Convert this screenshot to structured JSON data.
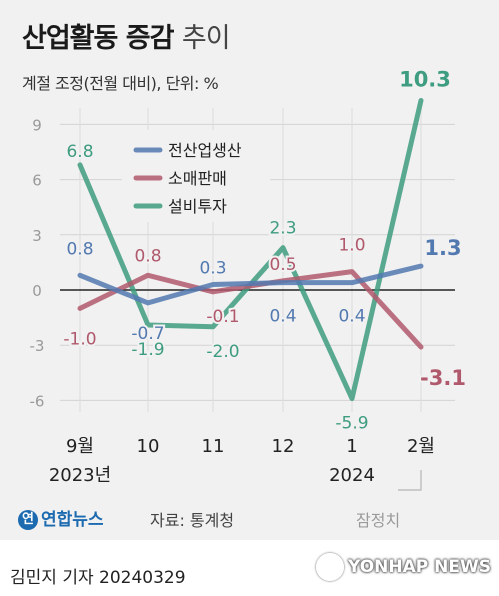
{
  "header": {
    "title": "산업활동 증감",
    "title_suffix": "추이",
    "subtitle": "계절 조정(전월 대비), 단위: %"
  },
  "chart_data": {
    "type": "line",
    "x": [
      "9월",
      "10",
      "11",
      "12",
      "1",
      "2월"
    ],
    "x_sublabels": [
      "2023년",
      "",
      "",
      "",
      "2024",
      ""
    ],
    "yticks": [
      "9",
      "6",
      "3",
      "0",
      "-3",
      "-6"
    ],
    "ylim": [
      -6,
      9
    ],
    "grid": true,
    "legend_placement": "top-left",
    "series": [
      {
        "name": "전산업생산",
        "color": "#5279b0",
        "values": [
          0.8,
          -0.7,
          0.3,
          0.4,
          0.4,
          1.3
        ],
        "labels": [
          "0.8",
          "-0.7",
          "0.3",
          "0.4",
          "0.4",
          "1.3"
        ]
      },
      {
        "name": "소매판매",
        "color": "#b0596c",
        "values": [
          -1.0,
          0.8,
          -0.1,
          0.5,
          1.0,
          -3.1
        ],
        "labels": [
          "-1.0",
          "0.8",
          "-0.1",
          "0.5",
          "1.0",
          "-3.1"
        ]
      },
      {
        "name": "설비투자",
        "color": "#3e9c80",
        "values": [
          6.8,
          -1.9,
          -2.0,
          2.3,
          -5.9,
          10.3
        ],
        "labels": [
          "6.8",
          "-1.9",
          "-2.0",
          "2.3",
          "-5.9",
          "10.3"
        ]
      }
    ]
  },
  "footer": {
    "logo_text": "연합뉴스",
    "logo_mark": "연",
    "source": "자료: 통계청",
    "provisional": "잠정치",
    "reporter": "김민지 기자  20240329",
    "watermark": "YONHAP NEWS"
  }
}
